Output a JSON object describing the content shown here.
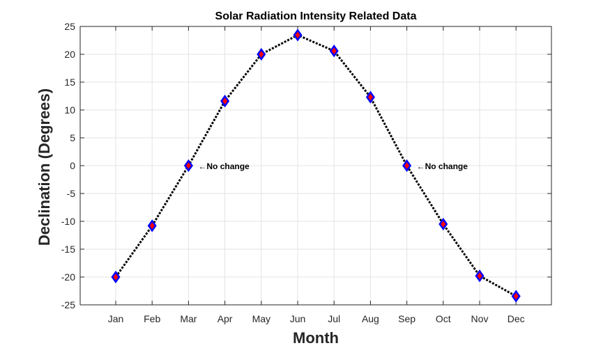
{
  "chart_data": {
    "type": "line",
    "title": "Solar Radiation Intensity Related Data",
    "xlabel": "Month",
    "ylabel": "Declination (Degrees)",
    "categories": [
      "Jan",
      "Feb",
      "Mar",
      "Apr",
      "May",
      "Jun",
      "Jul",
      "Aug",
      "Sep",
      "Oct",
      "Nov",
      "Dec"
    ],
    "values": [
      -20.0,
      -10.8,
      0.0,
      11.6,
      20.0,
      23.45,
      20.6,
      12.3,
      0.0,
      -10.5,
      -19.8,
      -23.45
    ],
    "ylim": [
      -25,
      25
    ],
    "yticks": [
      -25,
      -20,
      -15,
      -10,
      -5,
      0,
      5,
      10,
      15,
      20,
      25
    ],
    "grid": true,
    "line_style": "dotted",
    "line_color": "#000000",
    "marker": "diamond",
    "marker_face_color": "#ff0000",
    "marker_edge_color": "#0000ff",
    "annotations": [
      {
        "x": "Mar",
        "y": 0,
        "text": "←No change"
      },
      {
        "x": "Sep",
        "y": 0,
        "text": "←No change"
      }
    ]
  }
}
